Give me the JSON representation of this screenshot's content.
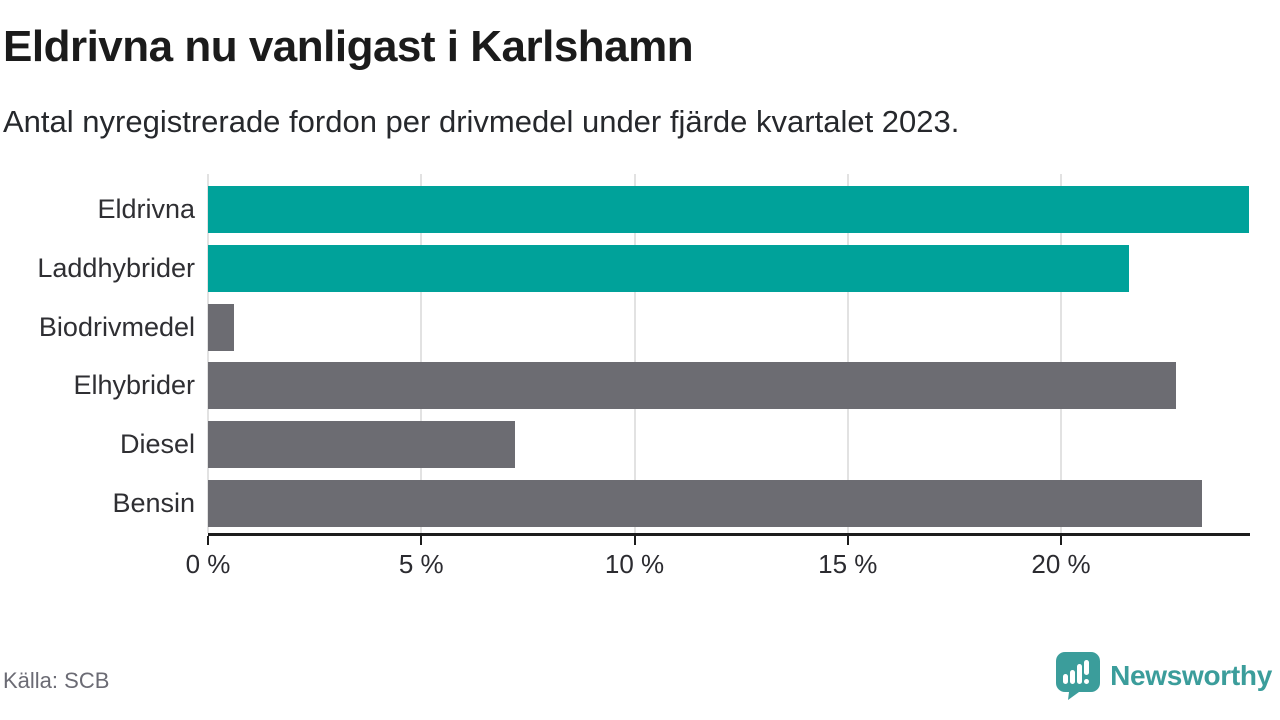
{
  "header": {
    "title": "Eldrivna nu vanligast i Karlshamn",
    "subtitle": "Antal nyregistrerade fordon per drivmedel under fjärde kvartalet 2023."
  },
  "footer": {
    "source": "Källa: SCB",
    "brand": "Newsworthy"
  },
  "colors": {
    "teal": "#00a29a",
    "gray": "#6c6c72",
    "grid": "#e2e2e2",
    "axis": "#1d1d1d",
    "muted": "#6b6b74",
    "brand": "#3b9d9b"
  },
  "chart_data": {
    "type": "bar",
    "orientation": "horizontal",
    "title": "Eldrivna nu vanligast i Karlshamn",
    "subtitle": "Antal nyregistrerade fordon per drivmedel under fjärde kvartalet 2023.",
    "categories": [
      "Eldrivna",
      "Laddhybrider",
      "Biodrivmedel",
      "Elhybrider",
      "Diesel",
      "Bensin"
    ],
    "values": [
      24.4,
      21.6,
      0.6,
      22.7,
      7.2,
      23.3
    ],
    "unit": "%",
    "bar_colors": [
      "#00a29a",
      "#00a29a",
      "#6c6c72",
      "#6c6c72",
      "#6c6c72",
      "#6c6c72"
    ],
    "xlabel": "",
    "ylabel": "",
    "xlim": [
      0,
      24.43
    ],
    "xticks": [
      0,
      5,
      10,
      15,
      20
    ],
    "xtick_labels": [
      "0 %",
      "5 %",
      "10 %",
      "15 %",
      "20 %"
    ],
    "grid": "vertical",
    "legend": "none",
    "source": "Källa: SCB"
  }
}
